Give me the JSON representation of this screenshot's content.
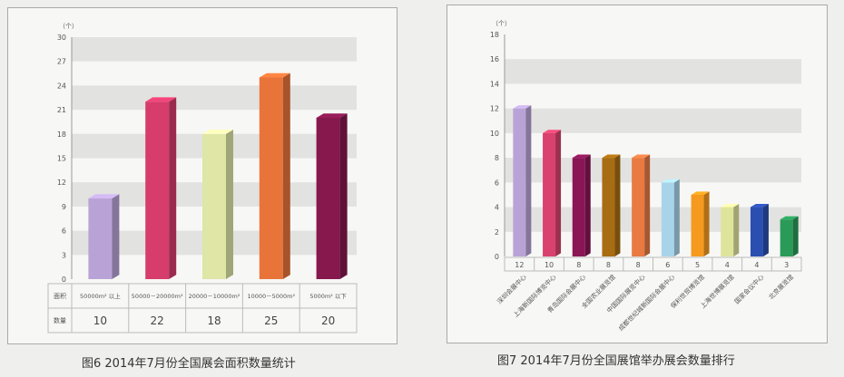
{
  "chart_data": [
    {
      "type": "bar",
      "title": "",
      "caption": "图6 2014年7月份全国展会面积数量统计",
      "ylabel": "（个）",
      "ylim": [
        0,
        30
      ],
      "yticks": [
        0,
        3,
        6,
        9,
        12,
        15,
        18,
        21,
        24,
        27,
        30
      ],
      "table_row_labels": [
        "面积",
        "数量"
      ],
      "categories": [
        "50000m² 以上",
        "50000－20000m²",
        "20000－10000m²",
        "10000－5000m²",
        "5000m² 以下"
      ],
      "values": [
        10,
        22,
        18,
        25,
        20
      ],
      "colors": [
        "#b9a3d6",
        "#d63c6c",
        "#dfe6a6",
        "#e8743a",
        "#86184e"
      ]
    },
    {
      "type": "bar",
      "title": "",
      "caption": "图7 2014年7月份全国展馆举办展会数量排行",
      "ylabel": "（个）",
      "ylim": [
        0,
        18
      ],
      "yticks": [
        0,
        2,
        4,
        6,
        8,
        10,
        12,
        14,
        16,
        18
      ],
      "categories": [
        "深圳会展中心",
        "上海新国际博览中心",
        "青岛国际会展中心",
        "全国农业展览馆",
        "中国国际展览中心",
        "成都世纪城新国际会展中心",
        "保利世贸博览馆",
        "上海世博展览馆",
        "国家会议中心",
        "北京展览馆"
      ],
      "values": [
        12,
        10,
        8,
        8,
        8,
        6,
        5,
        4,
        4,
        3
      ],
      "colors": [
        "#b9a3d6",
        "#d9426e",
        "#8a1656",
        "#a86c12",
        "#e87a42",
        "#a8d4ea",
        "#f59a1e",
        "#dfe49c",
        "#2b4fb0",
        "#2a9a58"
      ]
    }
  ]
}
